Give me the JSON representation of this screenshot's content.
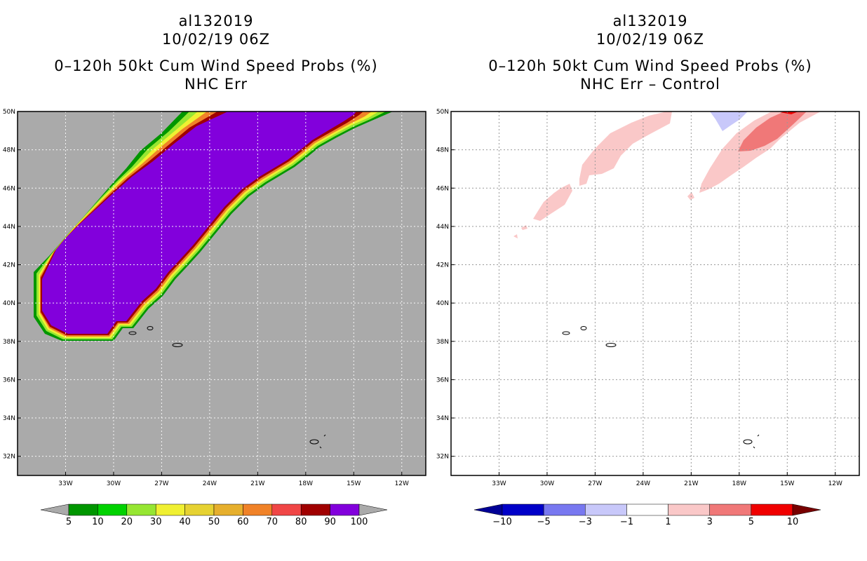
{
  "left_panel": {
    "title_lines": [
      "al132019",
      "10/02/19 06Z",
      "0–120h 50kt Cum Wind Speed Probs (%)",
      "NHC Err"
    ]
  },
  "right_panel": {
    "title_lines": [
      "al132019",
      "10/02/19 06Z",
      "0–120h 50kt Cum Wind Speed Probs (%)",
      "NHC Err – Control"
    ]
  },
  "map": {
    "lat_labels": [
      "50N",
      "48N",
      "46N",
      "44N",
      "42N",
      "40N",
      "38N",
      "36N",
      "34N",
      "32N"
    ],
    "lat_values": [
      50,
      48,
      46,
      44,
      42,
      40,
      38,
      36,
      34,
      32
    ],
    "lon_labels": [
      "33W",
      "30W",
      "27W",
      "24W",
      "21W",
      "18W",
      "15W",
      "12W"
    ],
    "lon_values": [
      -33,
      -30,
      -27,
      -24,
      -21,
      -18,
      -15,
      -12
    ],
    "lon_range": [
      -36,
      -10.5
    ],
    "lat_range": [
      31,
      50
    ]
  },
  "left_colorbar": {
    "labels": [
      "5",
      "10",
      "20",
      "30",
      "40",
      "50",
      "60",
      "70",
      "80",
      "90",
      "100"
    ],
    "colors": [
      "#009600",
      "#00d200",
      "#96e632",
      "#f0f032",
      "#e6d232",
      "#e6af2d",
      "#f08228",
      "#f04646",
      "#a00000",
      "#8200dc"
    ],
    "under_color": "#aaaaaa",
    "over_color": "#aaaaaa"
  },
  "right_colorbar": {
    "labels": [
      "−10",
      "−5",
      "−3",
      "−1",
      "1",
      "3",
      "5",
      "10"
    ],
    "colors": [
      "#0000c8",
      "#7878f0",
      "#c8c8fa",
      "#ffffff",
      "#fac8c8",
      "#f07878",
      "#f00000"
    ],
    "under_color": "#000096",
    "over_color": "#780000"
  },
  "colors": {
    "map_background": "#aaaaaa",
    "swath_core": "#8200dc",
    "diff_light_red": "#fac8c8",
    "diff_red": "#f07878",
    "diff_dark_red": "#f00000",
    "diff_light_blue": "#c8c8fa"
  }
}
